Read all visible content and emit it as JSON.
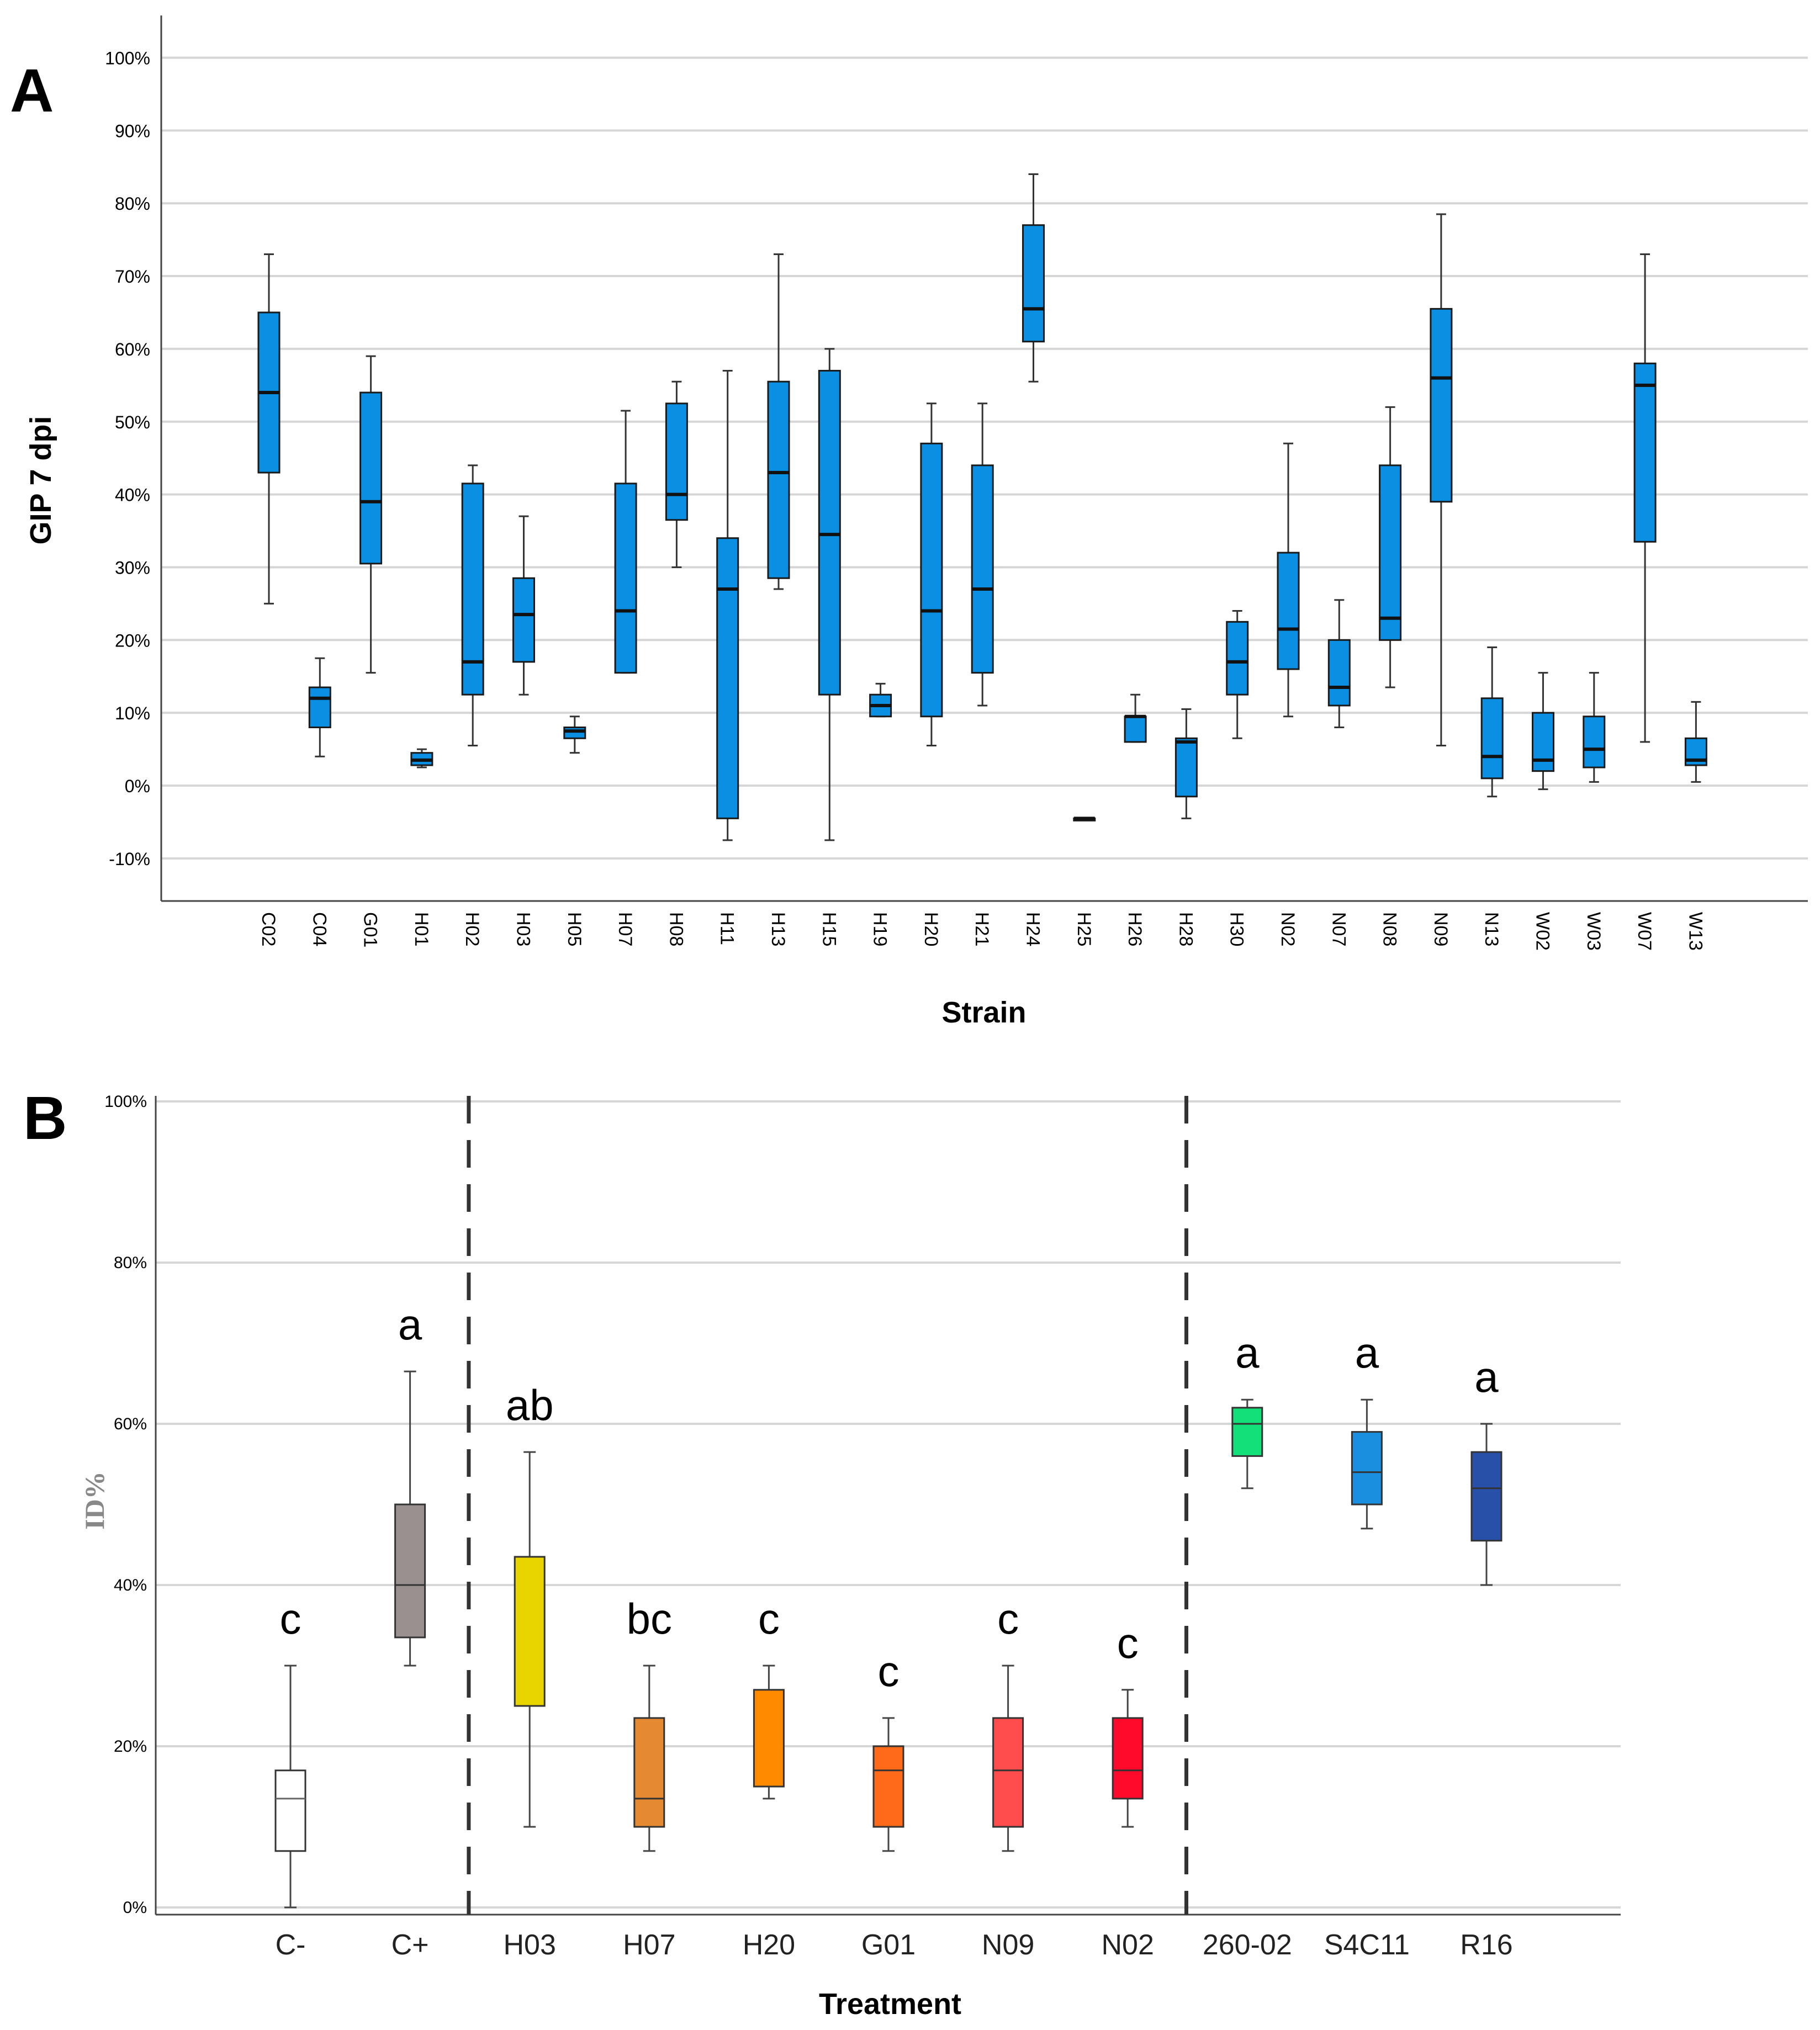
{
  "chart_data": [
    {
      "panel": "A",
      "type": "box",
      "title": "",
      "xlabel": "Strain",
      "ylabel": "GIP 7 dpi",
      "ylim": [
        -15,
        100
      ],
      "yticks": [
        "-10%",
        "0%",
        "10%",
        "20%",
        "30%",
        "40%",
        "50%",
        "60%",
        "70%",
        "80%",
        "90%",
        "100%"
      ],
      "grid": true,
      "box_color": "#0a8fe3",
      "boxes": [
        {
          "label": "C02",
          "min": 25,
          "q1": 43,
          "median": 54,
          "q3": 65,
          "max": 73
        },
        {
          "label": "C04",
          "min": 4,
          "q1": 8,
          "median": 12,
          "q3": 13.5,
          "max": 17.5
        },
        {
          "label": "G01",
          "min": 15.5,
          "q1": 30.5,
          "median": 39,
          "q3": 54,
          "max": 59
        },
        {
          "label": "H01",
          "min": 2.5,
          "q1": 2.8,
          "median": 3.5,
          "q3": 4.5,
          "max": 5
        },
        {
          "label": "H02",
          "min": 5.5,
          "q1": 12.5,
          "median": 17,
          "q3": 41.5,
          "max": 44
        },
        {
          "label": "H03",
          "min": 12.5,
          "q1": 17,
          "median": 23.5,
          "q3": 28.5,
          "max": 37
        },
        {
          "label": "H05",
          "min": 4.5,
          "q1": 6.5,
          "median": 7.5,
          "q3": 8,
          "max": 9.5
        },
        {
          "label": "H07",
          "min": 15.5,
          "q1": 15.5,
          "median": 24,
          "q3": 41.5,
          "max": 51.5
        },
        {
          "label": "H08",
          "min": 30,
          "q1": 36.5,
          "median": 40,
          "q3": 52.5,
          "max": 55.5
        },
        {
          "label": "H11",
          "min": -7.5,
          "q1": -4.5,
          "median": 27,
          "q3": 34,
          "max": 57
        },
        {
          "label": "H13",
          "min": 27,
          "q1": 28.5,
          "median": 43,
          "q3": 55.5,
          "max": 73
        },
        {
          "label": "H15",
          "min": -7.5,
          "q1": 12.5,
          "median": 34.5,
          "q3": 57,
          "max": 60
        },
        {
          "label": "H19",
          "min": 9.5,
          "q1": 9.5,
          "median": 11,
          "q3": 12.5,
          "max": 14
        },
        {
          "label": "H20",
          "min": 5.5,
          "q1": 9.5,
          "median": 24,
          "q3": 47,
          "max": 52.5
        },
        {
          "label": "H21",
          "min": 11,
          "q1": 15.5,
          "median": 27,
          "q3": 44,
          "max": 52.5
        },
        {
          "label": "H24",
          "min": 55.5,
          "q1": 61,
          "median": 65.5,
          "q3": 77,
          "max": 84
        },
        {
          "label": "H25",
          "min": -4.5,
          "q1": -4.5,
          "median": -4.5,
          "q3": -4.5,
          "max": -4.5
        },
        {
          "label": "H26",
          "min": 6,
          "q1": 6,
          "median": 9.5,
          "q3": 9.5,
          "max": 12.5
        },
        {
          "label": "H28",
          "min": -4.5,
          "q1": -1.5,
          "median": 6,
          "q3": 6.5,
          "max": 10.5
        },
        {
          "label": "H30",
          "min": 6.5,
          "q1": 12.5,
          "median": 17,
          "q3": 22.5,
          "max": 24
        },
        {
          "label": "N02",
          "min": 9.5,
          "q1": 16,
          "median": 21.5,
          "q3": 32,
          "max": 47
        },
        {
          "label": "N07",
          "min": 8,
          "q1": 11,
          "median": 13.5,
          "q3": 20,
          "max": 25.5
        },
        {
          "label": "N08",
          "min": 13.5,
          "q1": 20,
          "median": 23,
          "q3": 44,
          "max": 52
        },
        {
          "label": "N09",
          "min": 5.5,
          "q1": 39,
          "median": 56,
          "q3": 65.5,
          "max": 78.5
        },
        {
          "label": "N13",
          "min": -1.5,
          "q1": 1,
          "median": 4,
          "q3": 12,
          "max": 19
        },
        {
          "label": "W02",
          "min": -0.5,
          "q1": 2,
          "median": 3.5,
          "q3": 10,
          "max": 15.5
        },
        {
          "label": "W03",
          "min": 0.5,
          "q1": 2.5,
          "median": 5,
          "q3": 9.5,
          "max": 15.5
        },
        {
          "label": "W07",
          "min": 6,
          "q1": 33.5,
          "median": 55,
          "q3": 58,
          "max": 73
        },
        {
          "label": "W13",
          "min": 0.5,
          "q1": 2.8,
          "median": 3.5,
          "q3": 6.5,
          "max": 11.5
        }
      ]
    },
    {
      "panel": "B",
      "type": "box",
      "title": "",
      "xlabel": "Treatment",
      "ylabel": "ID%",
      "ylim": [
        0,
        100
      ],
      "yticks": [
        "0%",
        "20%",
        "40%",
        "60%",
        "80%",
        "100%"
      ],
      "grid": true,
      "group_dividers_after": [
        "C+",
        "N02"
      ],
      "boxes": [
        {
          "label": "C-",
          "min": 0,
          "q1": 7,
          "median": 13.5,
          "q3": 17,
          "max": 30,
          "sig": "c",
          "color": "#ffffff"
        },
        {
          "label": "C+",
          "min": 30,
          "q1": 33.5,
          "median": 40,
          "q3": 50,
          "max": 66.5,
          "sig": "a",
          "color": "#9a9090"
        },
        {
          "label": "H03",
          "min": 10,
          "q1": 25,
          "median": 25,
          "q3": 43.5,
          "max": 56.5,
          "sig": "ab",
          "color": "#e8d500"
        },
        {
          "label": "H07",
          "min": 7,
          "q1": 10,
          "median": 13.5,
          "q3": 23.5,
          "max": 30,
          "sig": "bc",
          "color": "#e58a33"
        },
        {
          "label": "H20",
          "min": 13.5,
          "q1": 15,
          "median": 15,
          "q3": 27,
          "max": 30,
          "sig": "c",
          "color": "#ff8a00"
        },
        {
          "label": "G01",
          "min": 7,
          "q1": 10,
          "median": 17,
          "q3": 20,
          "max": 23.5,
          "sig": "c",
          "color": "#ff6a1a"
        },
        {
          "label": "N09",
          "min": 7,
          "q1": 10,
          "median": 17,
          "q3": 23.5,
          "max": 30,
          "sig": "c",
          "color": "#ff4d4d"
        },
        {
          "label": "N02",
          "min": 10,
          "q1": 13.5,
          "median": 17,
          "q3": 23.5,
          "max": 27,
          "sig": "c",
          "color": "#ff0a2a"
        },
        {
          "label": "260-02",
          "min": 52,
          "q1": 56,
          "median": 60,
          "q3": 62,
          "max": 63,
          "sig": "a",
          "color": "#14e07a"
        },
        {
          "label": "S4C11",
          "min": 47,
          "q1": 50,
          "median": 54,
          "q3": 59,
          "max": 63,
          "sig": "a",
          "color": "#1a8fe0"
        },
        {
          "label": "R16",
          "min": 40,
          "q1": 45.5,
          "median": 52,
          "q3": 56.5,
          "max": 60,
          "sig": "a",
          "color": "#2850a8"
        }
      ]
    }
  ],
  "panels": {
    "a_letter": "A",
    "b_letter": "B"
  }
}
